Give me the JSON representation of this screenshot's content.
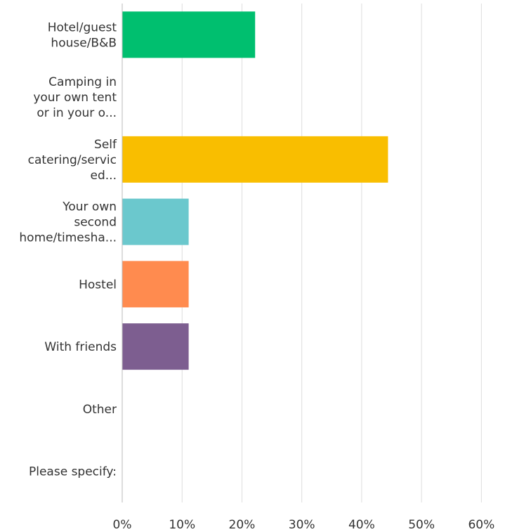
{
  "chart_data": {
    "type": "bar",
    "orientation": "horizontal",
    "title": "",
    "xlabel": "",
    "ylabel": "",
    "categories": [
      [
        "Hotel/guest",
        "house/B&B"
      ],
      [
        "Camping in",
        "your own tent",
        "or in your o..."
      ],
      [
        "Self",
        "catering/servic",
        "ed..."
      ],
      [
        "Your own",
        "second",
        "home/timesha..."
      ],
      [
        "Hostel"
      ],
      [
        "With friends"
      ],
      [
        "Other"
      ],
      [
        "Please specify:"
      ]
    ],
    "values": [
      22.2,
      0,
      44.4,
      11.1,
      11.1,
      11.1,
      0,
      0
    ],
    "colors": [
      "#00bf6f",
      "#7dc5c2",
      "#f9be00",
      "#6bc8cd",
      "#ff8b4f",
      "#7d5e90",
      "#d25f90",
      "#dbd5c8"
    ],
    "xlim": [
      0,
      67
    ],
    "xticks": [
      0,
      10,
      20,
      30,
      40,
      50,
      60
    ],
    "xtick_labels": [
      "0%",
      "10%",
      "20%",
      "30%",
      "40%",
      "50%",
      "60%"
    ],
    "grid": true,
    "legend": false
  },
  "style": {
    "grid_color": "#dddddd",
    "axis_color": "#bbbbbb",
    "text_color": "#333333"
  }
}
